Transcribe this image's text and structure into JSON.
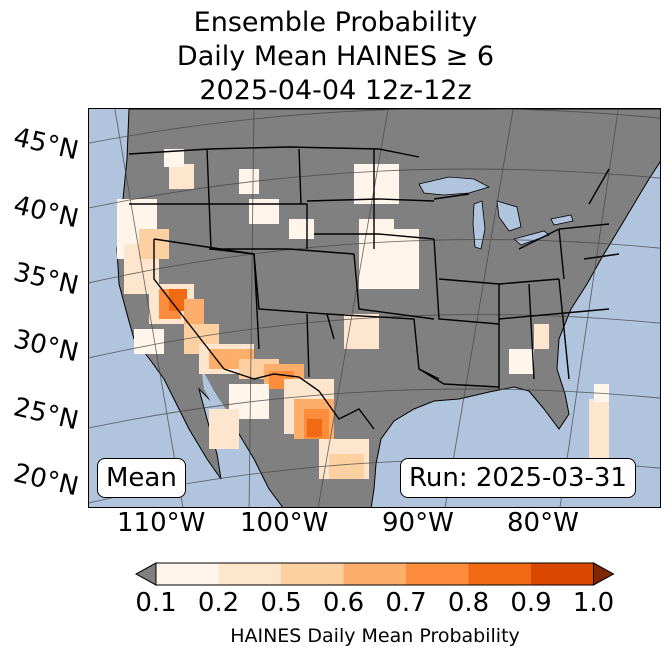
{
  "title": {
    "line1": "Ensemble Probability",
    "line2": "Daily Mean HAINES ≥ 6",
    "line3": "2025-04-04 12z-12z"
  },
  "map": {
    "ocean_color": "#b0c4de",
    "land_color": "#808080",
    "lat_labels": [
      "45°N",
      "40°N",
      "35°N",
      "30°N",
      "25°N",
      "20°N"
    ],
    "lon_labels": [
      "110°W",
      "100°W",
      "90°W",
      "80°W"
    ],
    "stat_label": "Mean",
    "run_label": "Run: 2025-03-31"
  },
  "colorbar": {
    "label": "HAINES Daily Mean Probability",
    "ticks": [
      "0.1",
      "0.2",
      "0.5",
      "0.6",
      "0.7",
      "0.8",
      "0.9",
      "1.0"
    ],
    "under_color": "#808080",
    "over_color": "#7f2704",
    "colors": [
      "#fff5eb",
      "#fee6ce",
      "#fdd0a2",
      "#fdae6b",
      "#fd8d3c",
      "#f16913",
      "#d94801"
    ]
  }
}
